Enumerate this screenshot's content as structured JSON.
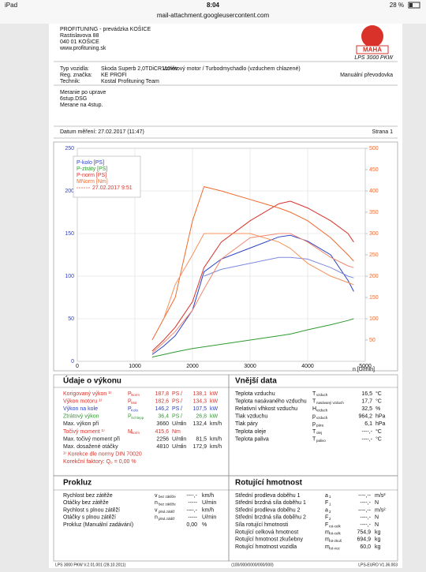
{
  "status": {
    "device": "iPad",
    "time": "8:04",
    "battery": "28 %"
  },
  "url": "mail-attachment.googleusercontent.com",
  "header": {
    "company": [
      "PROFITUNING - prevádzka KOŠICE",
      "Rastislavova 88",
      "040 01 KOŠICE",
      "www.profituning.sk"
    ],
    "logo": "MAHA",
    "model": "LPS 3000 PKW"
  },
  "vehicle": {
    "rows": [
      [
        "Typ vozidla:",
        "Skoda Superb 2,0TDiCR110kw"
      ],
      [
        "Reg. značka:",
        "KE PROFI"
      ],
      [
        "Technik:",
        "Kostal Profituning Team"
      ]
    ],
    "engine": "Vznětový motor / Turbodmychadlo (vzduchem chlazené)",
    "gearbox": "Manuální převodovka"
  },
  "notes": [
    "Meranie po uprave",
    "6stup.DSG",
    "Merane na 4stup."
  ],
  "date": "Datum měření: 27.02.2017 (11:47)",
  "page": "Strana 1",
  "chart_data": {
    "type": "line",
    "x_label": "n [U/min]",
    "compare_label": "27.02.2017 9:51",
    "x": [
      1300,
      1500,
      1700,
      2000,
      2200,
      2500,
      3000,
      3500,
      3700,
      4000,
      4400,
      4700,
      4800
    ],
    "xlim": [
      0,
      5000
    ],
    "xticks": [
      0,
      1000,
      2000,
      3000,
      4000,
      5000
    ],
    "ylim": [
      0,
      250
    ],
    "yticks": [
      0,
      50,
      100,
      150,
      200,
      250
    ],
    "y2lim": [
      0,
      500
    ],
    "y2ticks": [
      50,
      100,
      150,
      200,
      250,
      300,
      350,
      400,
      450,
      500
    ],
    "grid": true,
    "series": [
      {
        "name": "P-kolo [PS]",
        "color": "#2a3fc4",
        "values": [
          8,
          18,
          30,
          60,
          105,
          120,
          133,
          146,
          148,
          141,
          125,
          95,
          82
        ]
      },
      {
        "name": "P-ztráty [PS]",
        "color": "#2e9a2e",
        "values": [
          5,
          8,
          11,
          15,
          17,
          20,
          25,
          30,
          32,
          37,
          43,
          48,
          50
        ]
      },
      {
        "name": "P-norm [PS]",
        "color": "#d8322a",
        "values": [
          12,
          25,
          40,
          70,
          110,
          140,
          165,
          185,
          188,
          180,
          165,
          150,
          140
        ]
      },
      {
        "name": "MNorm [Nm]",
        "color": "#f06a30",
        "axis": "y2",
        "values": [
          50,
          100,
          150,
          330,
          410,
          400,
          380,
          360,
          350,
          330,
          290,
          250,
          235
        ]
      },
      {
        "color": "#7d8ae0",
        "values": [
          null,
          null,
          null,
          null,
          100,
          108,
          115,
          122,
          122,
          120,
          110,
          100,
          98
        ]
      },
      {
        "color": "#f08a70",
        "values": [
          10,
          22,
          35,
          60,
          85,
          120,
          145,
          150,
          150,
          140,
          122,
          112,
          110
        ]
      },
      {
        "color": "#f4925a",
        "axis": "y2",
        "values": [
          null,
          100,
          180,
          250,
          300,
          300,
          300,
          280,
          265,
          230,
          200,
          185,
          180
        ]
      }
    ]
  },
  "performance": {
    "title": "Údaje o výkonu",
    "rows": [
      {
        "label": "Korigovaný výkon ¹⁾",
        "sym": "P",
        "sub": "Norm",
        "v1": "187,8",
        "u1": "PS",
        "v2": "138,1",
        "u2": "kW",
        "color": "#d8322a"
      },
      {
        "label": "Výkon motoru ¹⁾",
        "sym": "P",
        "sub": "Mot",
        "v1": "182,6",
        "u1": "PS",
        "v2": "134,3",
        "u2": "kW",
        "color": "#d8322a"
      },
      {
        "label": "Výkon na kole",
        "sym": "P",
        "sub": "Kolo",
        "v1": "146,2",
        "u1": "PS",
        "v2": "107,5",
        "u2": "kW",
        "color": "#2a3fc4"
      },
      {
        "label": "Ztrátový výkon",
        "sym": "P",
        "sub": "Schlepp",
        "v1": "36,4",
        "u1": "PS",
        "v2": "26,8",
        "u2": "kW",
        "color": "#2e9a2e"
      },
      {
        "label": "Max. výkon při",
        "v1": "3660",
        "u1": "U/min",
        "v2": "132,4",
        "u2": "km/h",
        "color": "#222222"
      },
      {
        "label": "Točivý moment ¹⁾",
        "sym": "M",
        "sub": "Norm",
        "v1": "415,6",
        "u1": "Nm",
        "color": "#d8322a"
      },
      {
        "label": "Max. točivý moment při",
        "v1": "2256",
        "u1": "U/min",
        "v2": "81,5",
        "u2": "km/h",
        "color": "#222222"
      },
      {
        "label": "Max. dosažené otáčky",
        "v1": "4810",
        "u1": "U/min",
        "v2": "172,9",
        "u2": "km/h",
        "color": "#222222"
      },
      {
        "label": "¹⁾ Korekce dle normy DIN 70020",
        "color": "#d8322a"
      },
      {
        "label": "Korekční faktory: Q₀ =  0,00 %",
        "color": "#d8322a"
      }
    ]
  },
  "external": {
    "title": "Vnější data",
    "rows": [
      {
        "label": "Teplota vzduchu",
        "sym": "T",
        "sub": "vzduch",
        "v": "16,5",
        "u": "°C"
      },
      {
        "label": "Teplota nasávaného vzduchu",
        "sym": "T",
        "sub": "nasávaný vzduch",
        "v": "17,7",
        "u": "°C"
      },
      {
        "label": "Relativní vlhkost vzduchu",
        "sym": "H",
        "sub": "vzduch",
        "v": "32,5",
        "u": "%"
      },
      {
        "label": "Tlak vzduchu",
        "sym": "p",
        "sub": "vzduch",
        "v": "964,2",
        "u": "hPa"
      },
      {
        "label": "Tlak páry",
        "sym": "p",
        "sub": "pára",
        "v": "6,1",
        "u": "hPa"
      },
      {
        "label": "Teplota oleje",
        "sym": "T",
        "sub": "olej",
        "v": "----,-",
        "u": "°C"
      },
      {
        "label": "Teplota paliva",
        "sym": "T",
        "sub": "palivo",
        "v": "----,-",
        "u": "°C"
      }
    ]
  },
  "slip": {
    "title": "Prokluz",
    "rows": [
      {
        "label": "Rychlost bez zátěže",
        "sym": "v",
        "sub": "bez zátěže",
        "v": "----,-",
        "u": "km/h"
      },
      {
        "label": "Otáčky bez zátěže",
        "sym": "n",
        "sub": "bez zátěže",
        "v": "-----",
        "u": "U/min"
      },
      {
        "label": "Rychlost s plnou zátěží",
        "sym": "v",
        "sub": "plná zátěž",
        "v": "----,-",
        "u": "km/h"
      },
      {
        "label": "Otáčky s plnou zátěží",
        "sym": "n",
        "sub": "plná zátěž",
        "v": "-----",
        "u": "U/min"
      },
      {
        "label": "Prokluz (Manuální zadávání)",
        "v": "0,00",
        "u": "%"
      }
    ]
  },
  "rotating": {
    "title": "Rotující hmotnost",
    "rows": [
      {
        "label": "Střední prodleva doběhu 1",
        "sym": "a",
        "sub": "1",
        "v": "----,--",
        "u": "m/s²"
      },
      {
        "label": "Střední brzdná síla doběhu 1",
        "sym": "F",
        "sub": "1",
        "v": "----,-",
        "u": "N"
      },
      {
        "label": "Střední prodleva doběhu 2",
        "sym": "a",
        "sub": "2",
        "v": "----,--",
        "u": "m/s²"
      },
      {
        "label": "Střední brzdná síla doběhu 2",
        "sym": "F",
        "sub": "2",
        "v": "----,-",
        "u": "N"
      },
      {
        "label": "Síla rotující hmotnosti",
        "sym": "F",
        "sub": "rot-celk",
        "v": "----,-",
        "u": "N"
      },
      {
        "label": "Rotující celková hmotnost",
        "sym": "m",
        "sub": "rot-celk",
        "v": "754,9",
        "u": "kg"
      },
      {
        "label": "Rotující hmotnost zkušebny",
        "sym": "m",
        "sub": "rot-zkuš",
        "v": "694,9",
        "u": "kg"
      },
      {
        "label": "Rotující hmotnost vozidla",
        "sym": "m",
        "sub": "rot-voz",
        "v": "60,0",
        "u": "kg"
      }
    ]
  },
  "footer": [
    "LPS 3000 PKW V.2.01.001 (28.10.2011)",
    "(100/000/0000/000/000)",
    "LPS-EURO V1.36.003"
  ]
}
